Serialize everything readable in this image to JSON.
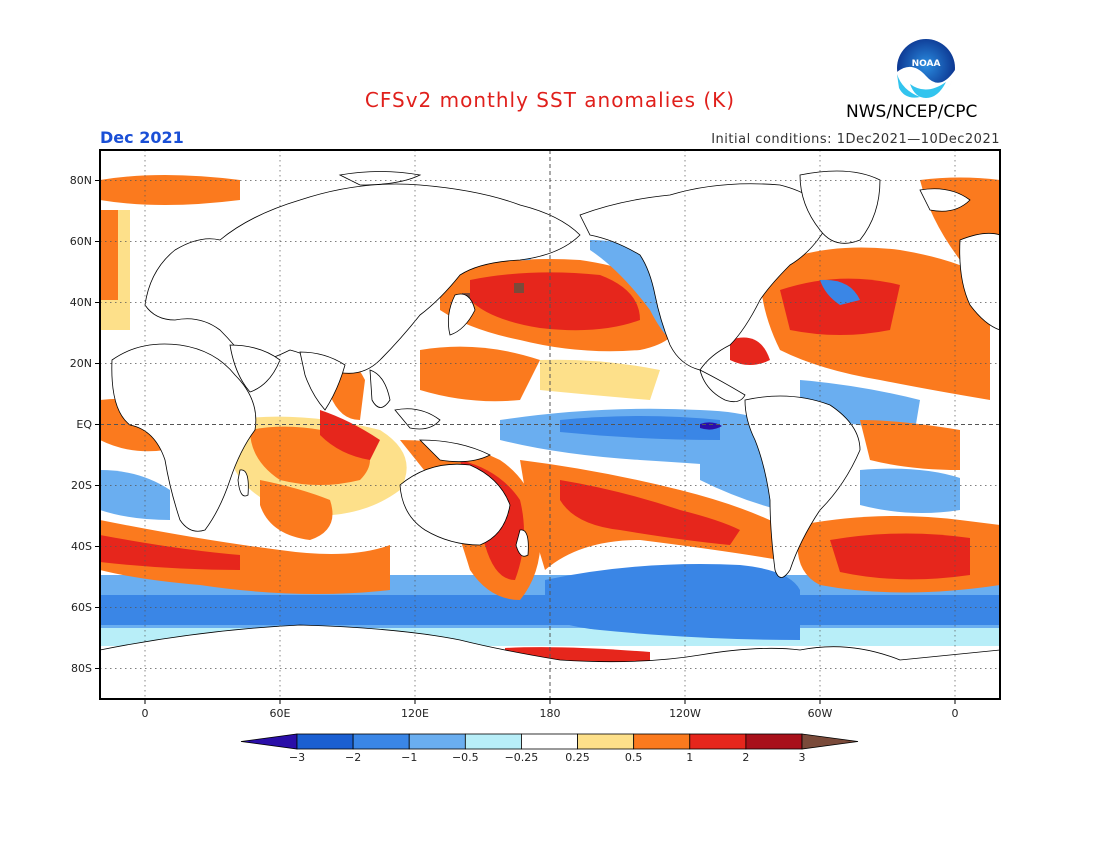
{
  "header": {
    "title": "CFSv2 monthly SST anomalies (K)",
    "agency": "NWS/NCEP/CPC",
    "period": "Dec 2021",
    "initial_conditions": "Initial conditions: 1Dec2021—10Dec2021",
    "logo_text": "NOAA"
  },
  "map": {
    "projection": "equirectangular",
    "lat_labels": [
      "80N",
      "60N",
      "40N",
      "20N",
      "EQ",
      "20S",
      "40S",
      "60S",
      "80S"
    ],
    "lat_values": [
      80,
      60,
      40,
      20,
      0,
      -20,
      -40,
      -60,
      -80
    ],
    "lon_labels": [
      "0",
      "60E",
      "120E",
      "180",
      "120W",
      "60W",
      "0"
    ],
    "lon_values": [
      0,
      60,
      120,
      180,
      240,
      300,
      360
    ],
    "lon_range": [
      -20,
      380
    ],
    "lat_range": [
      -90,
      90
    ]
  },
  "colorbar": {
    "labels": [
      "−3",
      "−2",
      "−1",
      "−0.5",
      "−0.25",
      "0.25",
      "0.5",
      "1",
      "2",
      "3"
    ],
    "colors": [
      "#2a0ea8",
      "#1a5fd2",
      "#3a86e6",
      "#6aaef0",
      "#b8eef8",
      "#ffffff",
      "#fde08a",
      "#fb7a1e",
      "#e6261c",
      "#a8101a",
      "#7a4a3a"
    ]
  }
}
